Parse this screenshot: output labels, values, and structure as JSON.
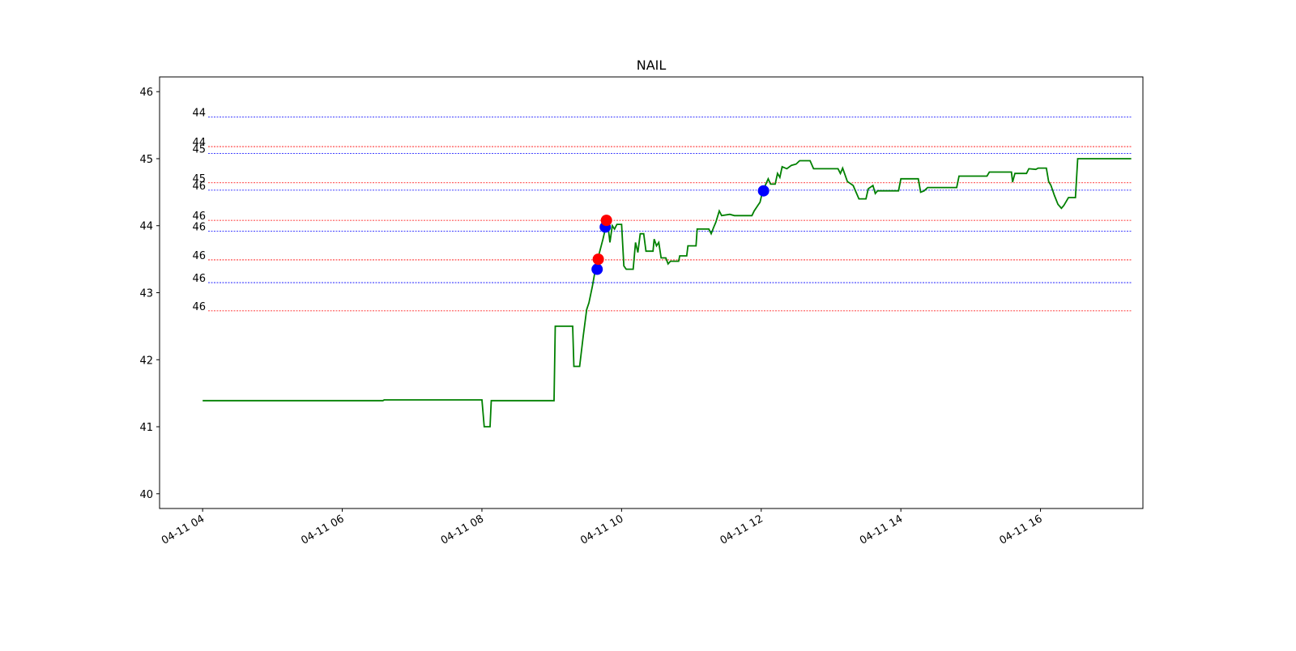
{
  "chart_data": {
    "type": "line",
    "title": "NAIL",
    "xlabel": "",
    "ylabel": "",
    "x_ticks": [
      "04-11 04",
      "04-11 06",
      "04-11 08",
      "04-11 10",
      "04-11 12",
      "04-11 14",
      "04-11 16"
    ],
    "y_ticks": [
      "40",
      "41",
      "42",
      "43",
      "44",
      "45",
      "46"
    ],
    "xlim": [
      "04-11 03:23",
      "04-11 17:28"
    ],
    "ylim": [
      39.78,
      46.22
    ],
    "grid": false,
    "colors": {
      "price": "#008000",
      "blue": "#0000ff",
      "red": "#ff0000"
    },
    "series": [
      {
        "line_color": "green",
        "points": [
          [
            "04-11 04:00",
            41.39
          ],
          [
            "04-11 06:35",
            41.39
          ],
          [
            "04-11 06:36",
            41.4
          ],
          [
            "04-11 08:00",
            41.4
          ],
          [
            "04-11 08:02",
            41.0
          ],
          [
            "04-11 08:07",
            41.0
          ],
          [
            "04-11 08:08",
            41.39
          ],
          [
            "04-11 09:02",
            41.39
          ],
          [
            "04-11 09:03",
            42.5
          ],
          [
            "04-11 09:18",
            42.5
          ],
          [
            "04-11 09:19",
            41.9
          ],
          [
            "04-11 09:24",
            41.9
          ],
          [
            "04-11 09:27",
            42.35
          ],
          [
            "04-11 09:30",
            42.75
          ],
          [
            "04-11 09:32",
            42.85
          ],
          [
            "04-11 09:35",
            43.1
          ],
          [
            "04-11 09:38",
            43.4
          ],
          [
            "04-11 09:41",
            43.6
          ],
          [
            "04-11 09:44",
            43.8
          ],
          [
            "04-11 09:46",
            43.95
          ],
          [
            "04-11 09:48",
            44.05
          ],
          [
            "04-11 09:50",
            43.75
          ],
          [
            "04-11 09:52",
            44.0
          ],
          [
            "04-11 09:54",
            43.95
          ],
          [
            "04-11 09:56",
            44.02
          ],
          [
            "04-11 10:00",
            44.02
          ],
          [
            "04-11 10:02",
            43.4
          ],
          [
            "04-11 10:04",
            43.35
          ],
          [
            "04-11 10:10",
            43.35
          ],
          [
            "04-11 10:12",
            43.75
          ],
          [
            "04-11 10:14",
            43.6
          ],
          [
            "04-11 10:16",
            43.88
          ],
          [
            "04-11 10:19",
            43.88
          ],
          [
            "04-11 10:21",
            43.62
          ],
          [
            "04-11 10:27",
            43.62
          ],
          [
            "04-11 10:28",
            43.8
          ],
          [
            "04-11 10:30",
            43.7
          ],
          [
            "04-11 10:32",
            43.75
          ],
          [
            "04-11 10:34",
            43.52
          ],
          [
            "04-11 10:38",
            43.52
          ],
          [
            "04-11 10:40",
            43.43
          ],
          [
            "04-11 10:42",
            43.47
          ],
          [
            "04-11 10:49",
            43.47
          ],
          [
            "04-11 10:50",
            43.55
          ],
          [
            "04-11 10:56",
            43.55
          ],
          [
            "04-11 10:57",
            43.7
          ],
          [
            "04-11 11:04",
            43.7
          ],
          [
            "04-11 11:05",
            43.95
          ],
          [
            "04-11 11:15",
            43.95
          ],
          [
            "04-11 11:17",
            43.88
          ],
          [
            "04-11 11:19",
            43.97
          ],
          [
            "04-11 11:21",
            44.05
          ],
          [
            "04-11 11:24",
            44.22
          ],
          [
            "04-11 11:26",
            44.15
          ],
          [
            "04-11 11:33",
            44.17
          ],
          [
            "04-11 11:37",
            44.15
          ],
          [
            "04-11 11:52",
            44.15
          ],
          [
            "04-11 11:54",
            44.22
          ],
          [
            "04-11 11:57",
            44.3
          ],
          [
            "04-11 11:59",
            44.35
          ],
          [
            "04-11 12:01",
            44.5
          ],
          [
            "04-11 12:04",
            44.62
          ],
          [
            "04-11 12:06",
            44.7
          ],
          [
            "04-11 12:08",
            44.62
          ],
          [
            "04-11 12:12",
            44.62
          ],
          [
            "04-11 12:14",
            44.78
          ],
          [
            "04-11 12:16",
            44.72
          ],
          [
            "04-11 12:18",
            44.88
          ],
          [
            "04-11 12:22",
            44.85
          ],
          [
            "04-11 12:26",
            44.9
          ],
          [
            "04-11 12:30",
            44.92
          ],
          [
            "04-11 12:33",
            44.97
          ],
          [
            "04-11 12:42",
            44.97
          ],
          [
            "04-11 12:45",
            44.85
          ],
          [
            "04-11 13:06",
            44.85
          ],
          [
            "04-11 13:08",
            44.78
          ],
          [
            "04-11 13:10",
            44.86
          ],
          [
            "04-11 13:14",
            44.66
          ],
          [
            "04-11 13:19",
            44.6
          ],
          [
            "04-11 13:24",
            44.4
          ],
          [
            "04-11 13:30",
            44.4
          ],
          [
            "04-11 13:32",
            44.55
          ],
          [
            "04-11 13:36",
            44.6
          ],
          [
            "04-11 13:38",
            44.48
          ],
          [
            "04-11 13:40",
            44.52
          ],
          [
            "04-11 13:58",
            44.52
          ],
          [
            "04-11 14:00",
            44.7
          ],
          [
            "04-11 14:15",
            44.7
          ],
          [
            "04-11 14:17",
            44.5
          ],
          [
            "04-11 14:20",
            44.52
          ],
          [
            "04-11 14:23",
            44.57
          ],
          [
            "04-11 14:48",
            44.57
          ],
          [
            "04-11 14:50",
            44.74
          ],
          [
            "04-11 15:14",
            44.74
          ],
          [
            "04-11 15:16",
            44.8
          ],
          [
            "04-11 15:35",
            44.8
          ],
          [
            "04-11 15:36",
            44.65
          ],
          [
            "04-11 15:38",
            44.78
          ],
          [
            "04-11 15:48",
            44.78
          ],
          [
            "04-11 15:50",
            44.85
          ],
          [
            "04-11 15:56",
            44.84
          ],
          [
            "04-11 15:58",
            44.86
          ],
          [
            "04-11 16:05",
            44.86
          ],
          [
            "04-11 16:07",
            44.66
          ],
          [
            "04-11 16:09",
            44.6
          ],
          [
            "04-11 16:12",
            44.45
          ],
          [
            "04-11 16:15",
            44.32
          ],
          [
            "04-11 16:18",
            44.26
          ],
          [
            "04-11 16:20",
            44.3
          ],
          [
            "04-11 16:24",
            44.42
          ],
          [
            "04-11 16:30",
            44.42
          ],
          [
            "04-11 16:32",
            45.0
          ],
          [
            "04-11 17:18",
            45.0
          ]
        ]
      }
    ],
    "markers": [
      {
        "color": "blue",
        "x": "04-11 09:39",
        "y": 43.35
      },
      {
        "color": "red",
        "x": "04-11 09:40",
        "y": 43.5
      },
      {
        "color": "blue",
        "x": "04-11 09:46",
        "y": 43.98
      },
      {
        "color": "red",
        "x": "04-11 09:47",
        "y": 44.08
      },
      {
        "color": "blue",
        "x": "04-11 12:02",
        "y": 44.52
      }
    ],
    "levels": [
      {
        "color": "blue",
        "y": 45.62,
        "label": "44"
      },
      {
        "color": "red",
        "y": 45.18,
        "label": "44"
      },
      {
        "color": "blue",
        "y": 45.08,
        "label": "45"
      },
      {
        "color": "red",
        "y": 44.64,
        "label": "45"
      },
      {
        "color": "blue",
        "y": 44.53,
        "label": "46"
      },
      {
        "color": "red",
        "y": 44.08,
        "label": "46"
      },
      {
        "color": "blue",
        "y": 43.92,
        "label": "46"
      },
      {
        "color": "red",
        "y": 43.49,
        "label": "46"
      },
      {
        "color": "blue",
        "y": 43.15,
        "label": "46"
      },
      {
        "color": "red",
        "y": 42.73,
        "label": "46"
      }
    ],
    "level_line_end": "04-11 17:18"
  }
}
